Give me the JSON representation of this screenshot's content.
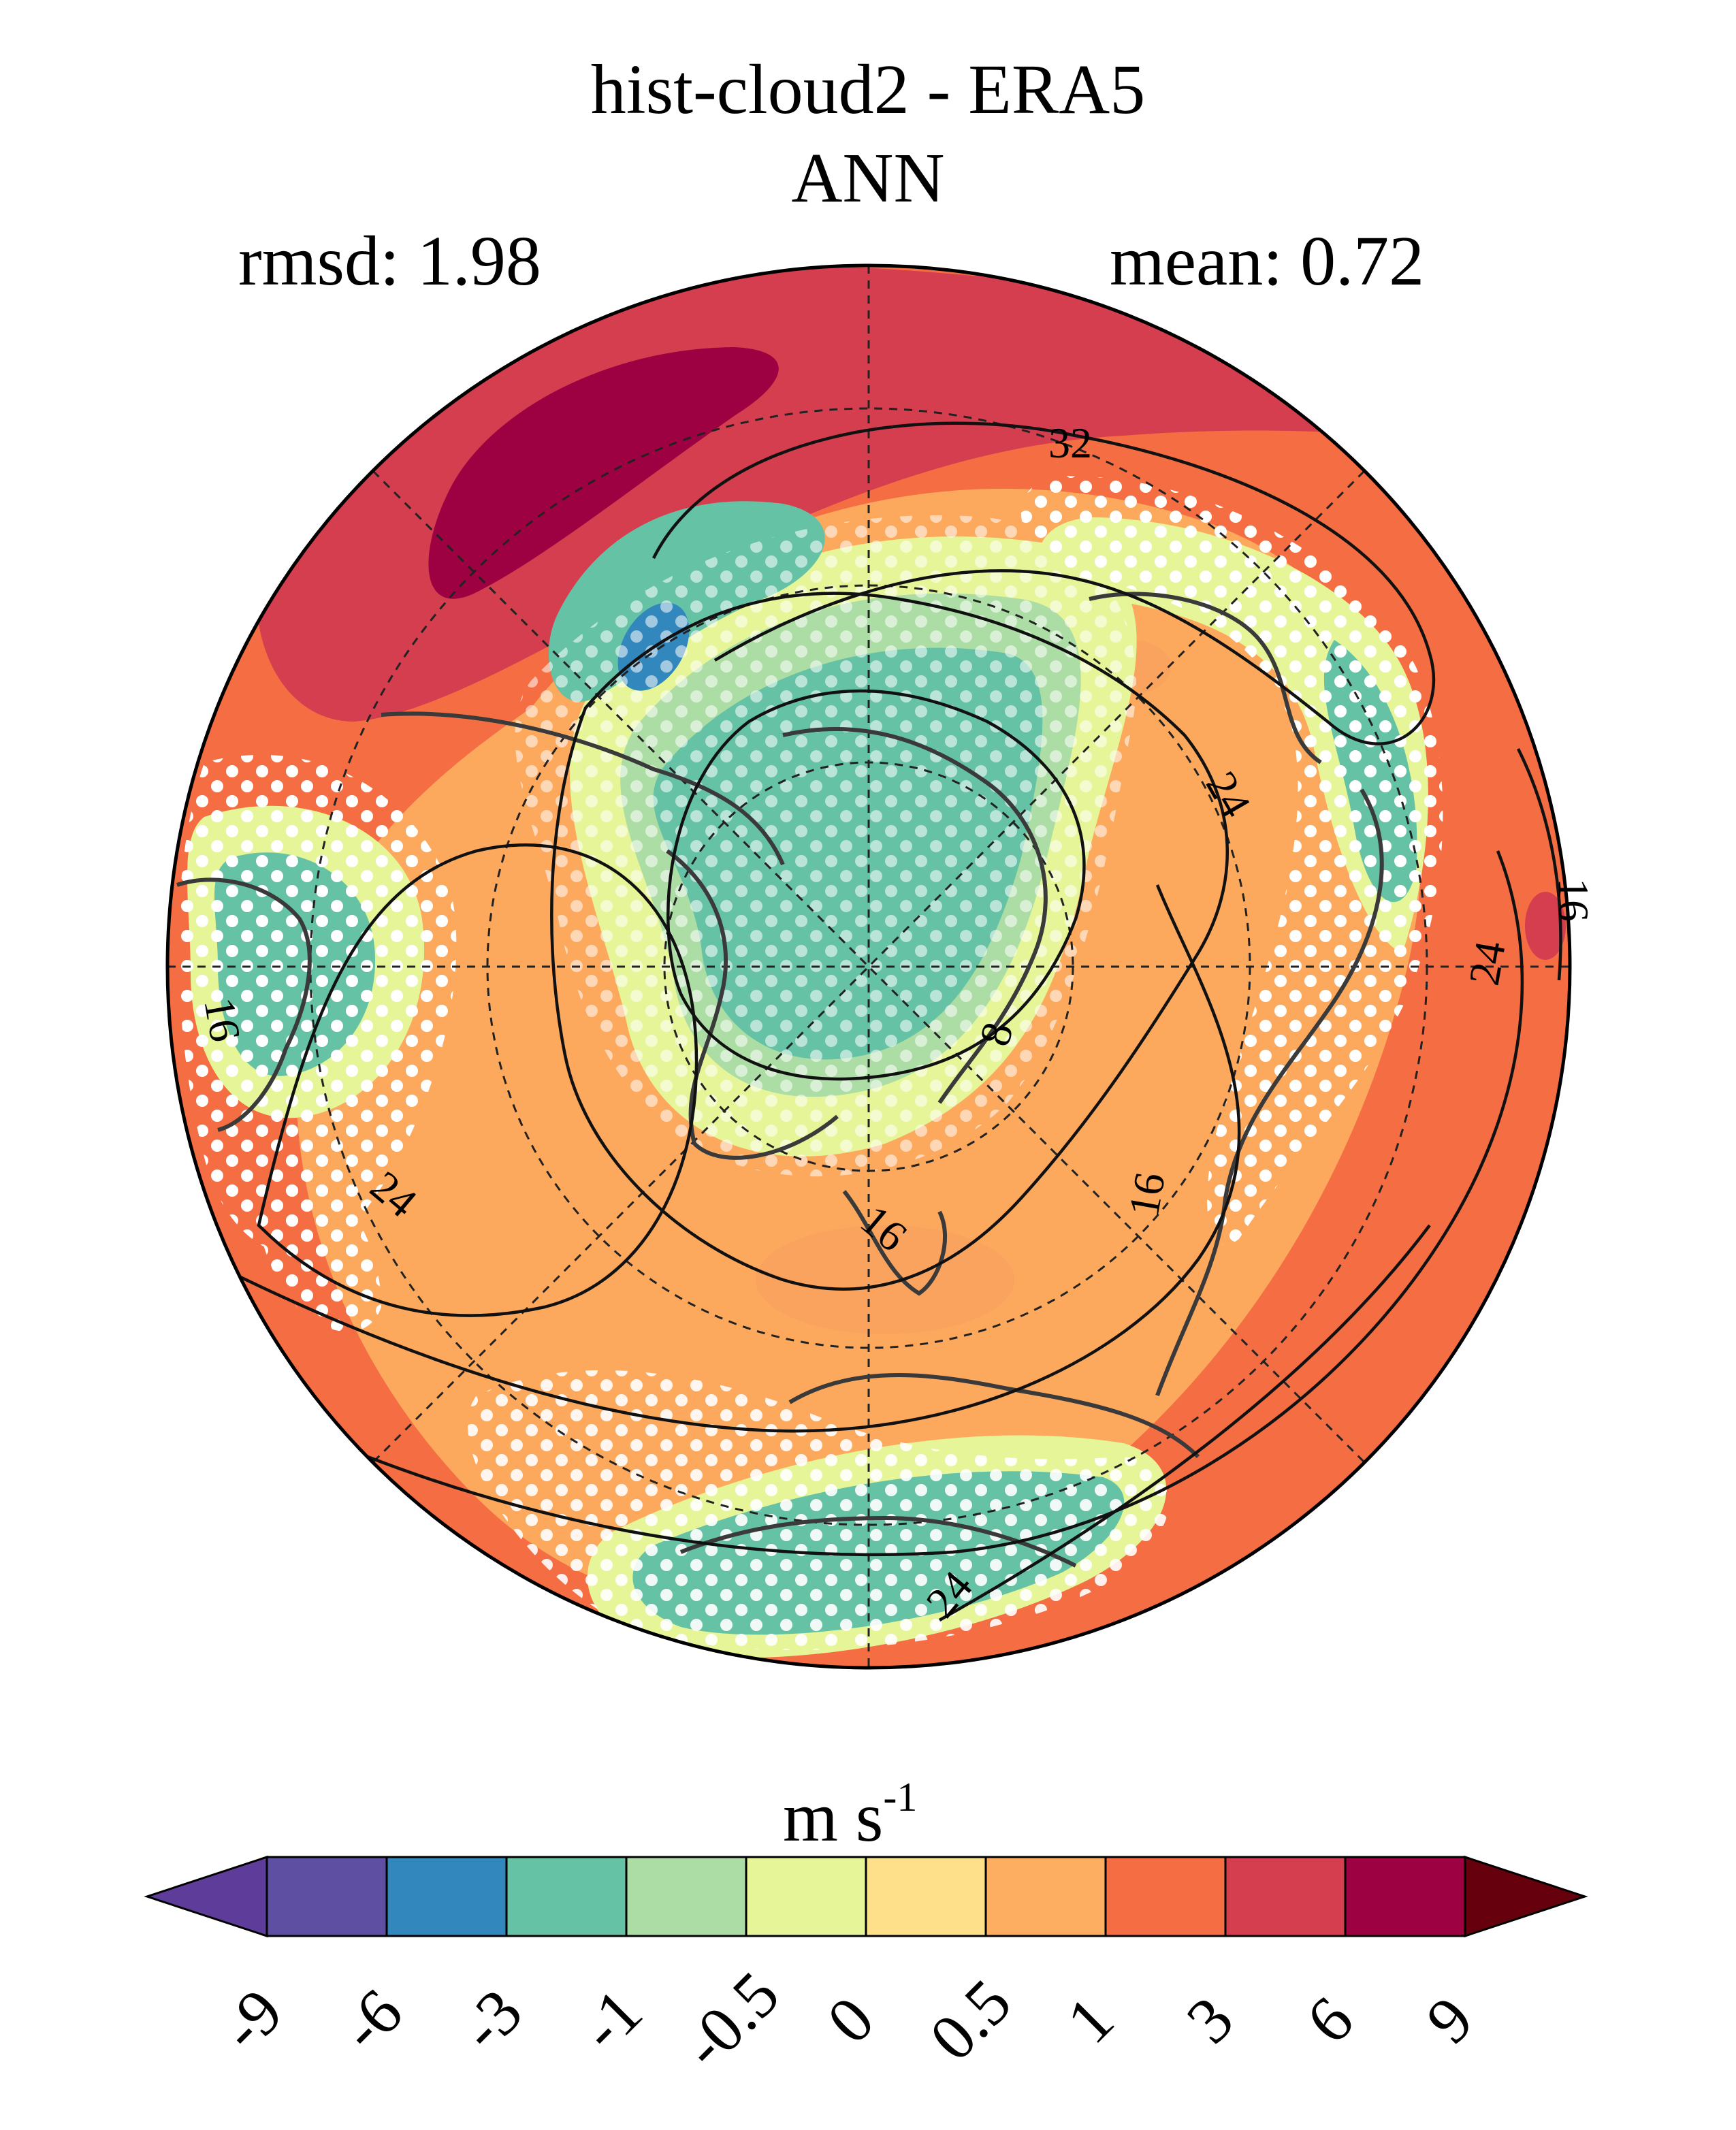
{
  "title": {
    "line1": "hist-cloud2 - ERA5",
    "line2": "ANN"
  },
  "stats": {
    "rmsd_label": "rmsd: 1.98",
    "mean_label": "mean: 0.72"
  },
  "contour_labels": [
    "32",
    "24",
    "16",
    "24",
    "16",
    "24",
    "16",
    "24",
    "8",
    "16",
    "24",
    "16"
  ],
  "colorbar": {
    "units_base": "m s",
    "units_exp": "-1",
    "ticks": [
      "-9",
      "-6",
      "-3",
      "-1",
      "-0.5",
      "0",
      "0.5",
      "1",
      "3",
      "6",
      "9"
    ],
    "colors": {
      "under": "#5e3c99",
      "levels": [
        "#5e4fa2",
        "#3288bd",
        "#66c2a5",
        "#abdda4",
        "#e6f598",
        "#fee08b",
        "#fdae61",
        "#f46d43",
        "#d53e4f",
        "#9e0142"
      ],
      "over": "#67000d"
    }
  }
}
